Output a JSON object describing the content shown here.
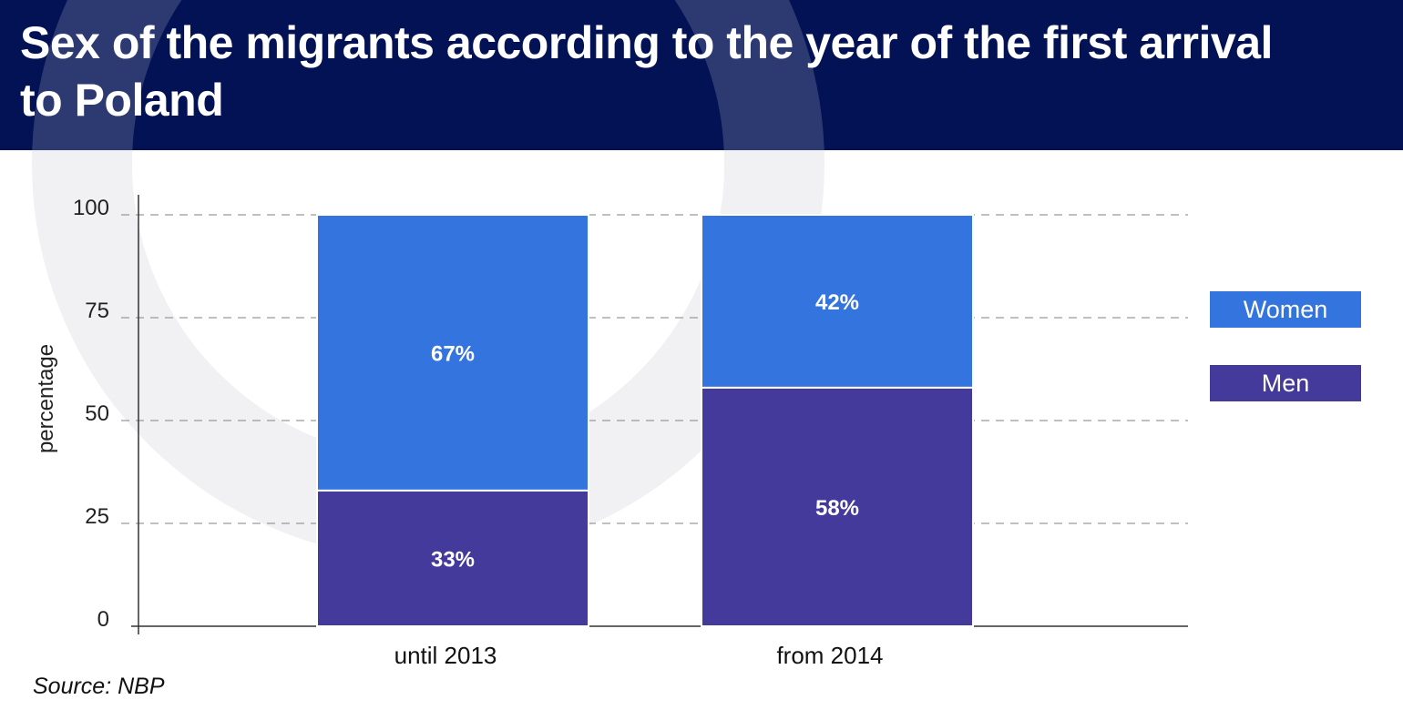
{
  "header": {
    "title": "Sex of the migrants according to the year of the first arrival to Poland"
  },
  "source": "Source: NBP",
  "colors": {
    "header_bg": "#031254",
    "women": "#3374de",
    "men": "#433a9c",
    "axis": "#333333",
    "grid": "#9a9a9a"
  },
  "chart_data": {
    "type": "bar",
    "stacked": true,
    "title": "Sex of the migrants according to the year of the first arrival to Poland",
    "ylabel": "percentage",
    "xlabel": "",
    "ylim": [
      0,
      100
    ],
    "yticks": [
      0,
      25,
      50,
      75,
      100
    ],
    "grid": true,
    "legend_position": "right",
    "categories": [
      "until 2013",
      "from 2014"
    ],
    "series": [
      {
        "name": "Men",
        "values": [
          33,
          58
        ],
        "labels": [
          "33%",
          "58%"
        ],
        "color": "#433a9c"
      },
      {
        "name": "Women",
        "values": [
          67,
          42
        ],
        "labels": [
          "67%",
          "42%"
        ],
        "color": "#3374de"
      }
    ],
    "legend": [
      "Women",
      "Men"
    ]
  }
}
